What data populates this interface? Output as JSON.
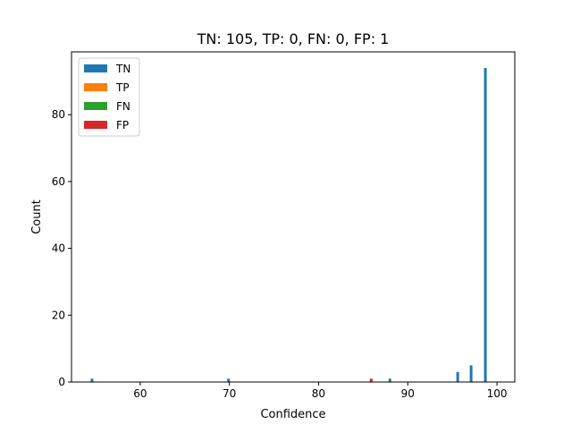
{
  "chart_data": {
    "type": "bar",
    "title": "TN: 105, TP: 0, FN: 0, FP: 1",
    "xlabel": "Confidence",
    "ylabel": "Count",
    "xlim": [
      52.3,
      102.0
    ],
    "ylim": [
      0,
      98.8
    ],
    "xticks": [
      60,
      70,
      80,
      90,
      100
    ],
    "yticks": [
      0,
      20,
      40,
      60,
      80
    ],
    "grid": false,
    "legend_position": "top-left",
    "bar_width": 0.3,
    "series": [
      {
        "name": "TN",
        "color": "#1f77b4",
        "points": [
          {
            "x": 54.6,
            "y": 1
          },
          {
            "x": 69.9,
            "y": 1
          },
          {
            "x": 88.0,
            "y": 1
          },
          {
            "x": 95.6,
            "y": 3
          },
          {
            "x": 97.1,
            "y": 5
          },
          {
            "x": 98.7,
            "y": 94
          }
        ]
      },
      {
        "name": "TP",
        "color": "#ff7f0e",
        "points": []
      },
      {
        "name": "FN",
        "color": "#2ca02c",
        "points": []
      },
      {
        "name": "FP",
        "color": "#d62728",
        "points": [
          {
            "x": 85.9,
            "y": 1
          }
        ]
      }
    ]
  }
}
